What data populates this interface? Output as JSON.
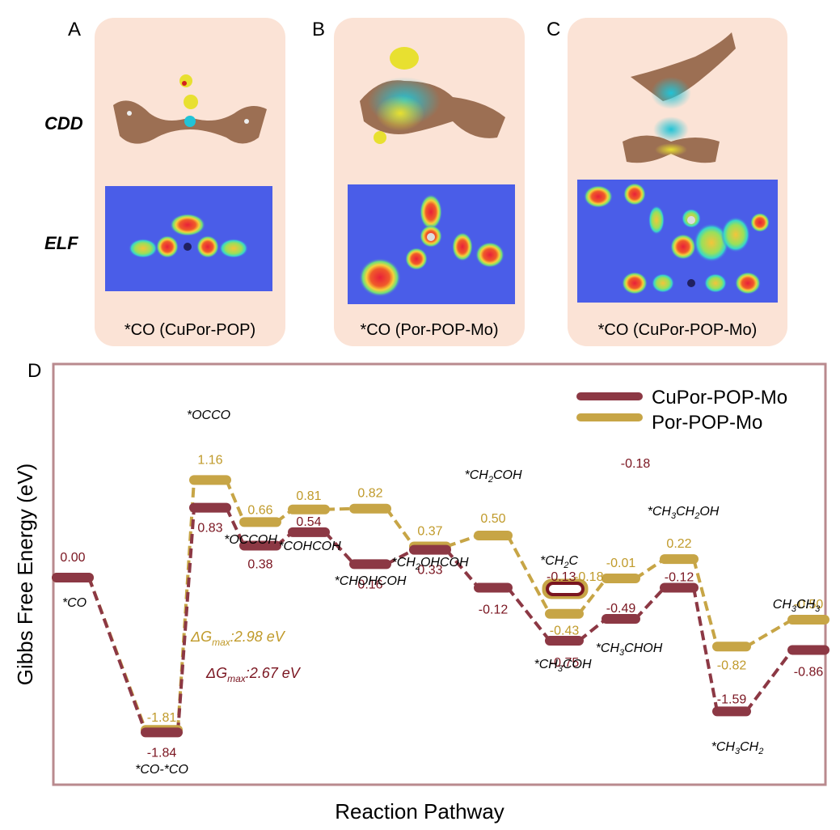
{
  "panels": [
    {
      "letter": "A",
      "caption": "*CO (CuPor-POP)"
    },
    {
      "letter": "B",
      "caption": "*CO (Por-POP-Mo)"
    },
    {
      "letter": "C",
      "caption": "*CO (CuPor-POP-Mo)"
    }
  ],
  "row_labels": {
    "cdd": "CDD",
    "elf": "ELF"
  },
  "colors": {
    "cupor": "#8c3844",
    "por": "#c7a546",
    "cupor_text": "#7a1520",
    "por_text": "#c09a2a",
    "panel_bg": "#fbe3d6",
    "frame": "#b98a8e",
    "elf_bg": "#4a5de8"
  },
  "chart_data": {
    "panel_letter": "D",
    "type": "free-energy-diagram",
    "xlabel": "Reaction Pathway",
    "ylabel": "Gibbs Free Energy (eV)",
    "ylim": [
      -2.35,
      1.65
    ],
    "legend_position": "top-right",
    "series": [
      {
        "name": "CuPor-POP-Mo",
        "steps": [
          0,
          1,
          2,
          3,
          4,
          5,
          6,
          7,
          8,
          9,
          10,
          11,
          12,
          13
        ],
        "values": [
          0.0,
          -1.84,
          0.83,
          0.38,
          0.54,
          0.16,
          0.33,
          -0.12,
          -0.75,
          -0.49,
          -0.12,
          -1.59,
          -0.86
        ],
        "value_labels": [
          "0.00",
          "-1.84",
          "0.83",
          "0.38",
          "0.54",
          "0.16",
          "0.33",
          "-0.12",
          "-0.75",
          "-0.49",
          "-0.12",
          "-1.59",
          "-0.86"
        ]
      },
      {
        "name": "Por-POP-Mo",
        "values": [
          0.0,
          -1.81,
          1.16,
          0.66,
          0.81,
          0.82,
          0.37,
          0.5,
          -0.43,
          -0.01,
          0.22,
          -0.82,
          -0.5
        ],
        "value_labels": [
          "",
          "-1.81",
          "1.16",
          "0.66",
          "0.81",
          "0.82",
          "0.37",
          "0.50",
          "-0.43",
          "-0.01",
          "0.22",
          "-0.82",
          "-0.50"
        ]
      }
    ],
    "intermediates": [
      "*CO",
      "*CO-*CO",
      "*OCCO",
      "*OCCOH",
      "*COHCOH",
      "*CHOHCOH",
      "*CH2OHCOH",
      "*CH2COH",
      "*CH3COH",
      "*CH3CHOH",
      "*CH3CH2OH",
      "*CH3CH2",
      "CH3CH3"
    ],
    "special_intermediate": {
      "label": "*CH2C",
      "cupor_value": -0.13,
      "por_value": -0.18,
      "cupor_label": "-0.13",
      "por_label": "-0.18"
    },
    "stray_label": "-0.18",
    "dg_max": [
      {
        "series": "Por-POP-Mo",
        "label": "ΔG",
        "sub": "max",
        "value": ":2.98 eV"
      },
      {
        "series": "CuPor-POP-Mo",
        "label": "ΔG",
        "sub": "max",
        "value": ":2.67 eV"
      }
    ]
  }
}
